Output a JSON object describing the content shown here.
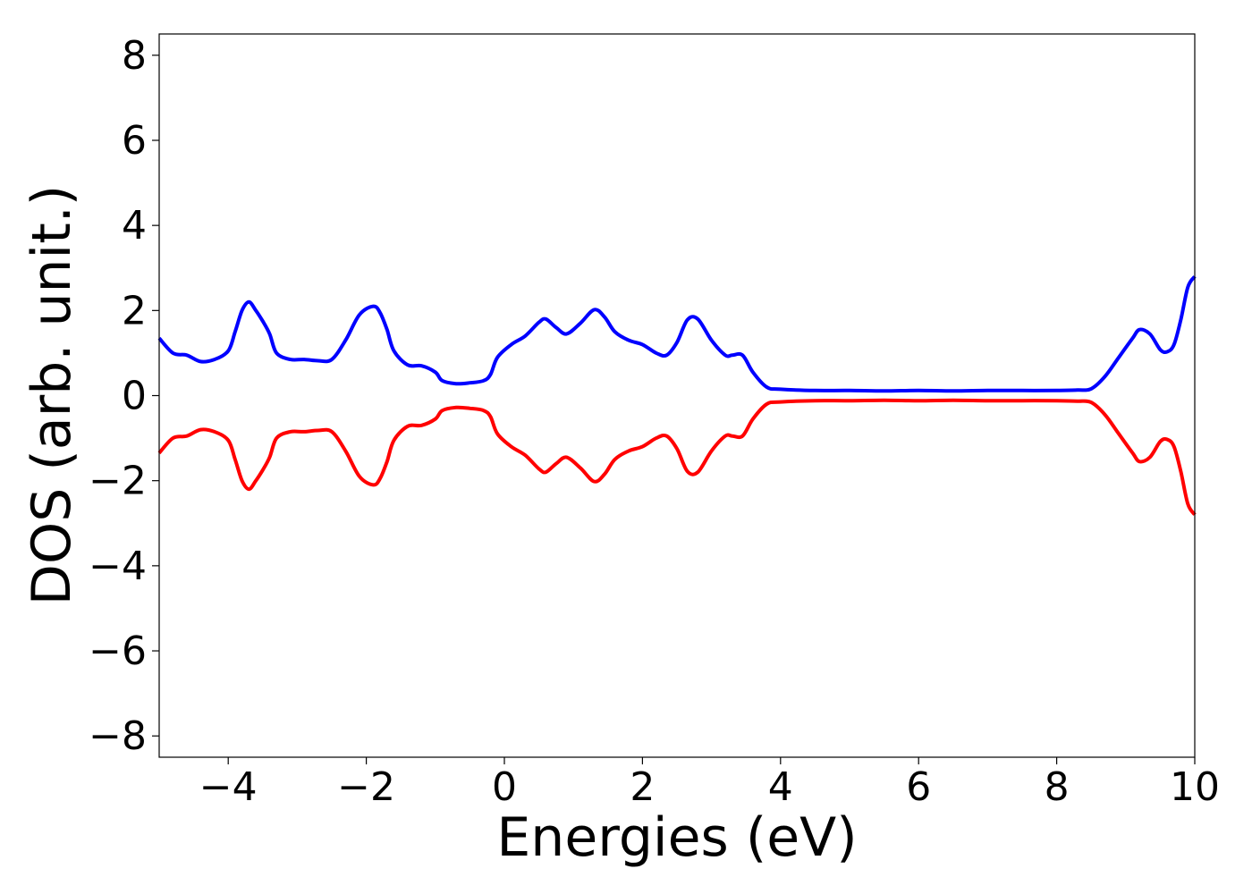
{
  "chart_data": {
    "type": "line",
    "title": "",
    "xlabel": "Energies (eV)",
    "ylabel": "DOS (arb. unit.)",
    "xlim": [
      -5,
      10
    ],
    "ylim": [
      -8.5,
      8.5
    ],
    "xticks": [
      -4,
      -2,
      0,
      2,
      4,
      6,
      8,
      10
    ],
    "yticks": [
      -8,
      -6,
      -4,
      -2,
      0,
      2,
      4,
      6,
      8
    ],
    "xtick_labels": [
      "−4",
      "−2",
      "0",
      "2",
      "4",
      "6",
      "8",
      "10"
    ],
    "ytick_labels": [
      "−8",
      "−6",
      "−4",
      "−2",
      "0",
      "2",
      "4",
      "6",
      "8"
    ],
    "grid": false,
    "legend": "none",
    "series": [
      {
        "color": "#0000ff",
        "x": [
          -5.0,
          -4.8,
          -4.6,
          -4.4,
          -4.2,
          -4.0,
          -3.9,
          -3.8,
          -3.7,
          -3.6,
          -3.5,
          -3.4,
          -3.3,
          -3.1,
          -2.9,
          -2.7,
          -2.5,
          -2.3,
          -2.1,
          -1.9,
          -1.8,
          -1.7,
          -1.6,
          -1.4,
          -1.2,
          -1.0,
          -0.9,
          -0.7,
          -0.5,
          -0.3,
          -0.2,
          -0.1,
          0.1,
          0.3,
          0.5,
          0.6,
          0.75,
          0.9,
          1.1,
          1.3,
          1.45,
          1.6,
          1.8,
          2.0,
          2.2,
          2.35,
          2.5,
          2.65,
          2.8,
          3.0,
          3.2,
          3.3,
          3.45,
          3.6,
          3.8,
          4.0,
          4.5,
          5.0,
          5.5,
          6.0,
          6.5,
          7.0,
          7.5,
          8.0,
          8.3,
          8.5,
          8.7,
          8.9,
          9.1,
          9.2,
          9.35,
          9.5,
          9.6,
          9.7,
          9.8,
          9.9,
          10.0
        ],
        "y": [
          1.35,
          1.0,
          0.95,
          0.8,
          0.85,
          1.05,
          1.5,
          2.0,
          2.2,
          2.0,
          1.75,
          1.45,
          1.0,
          0.85,
          0.85,
          0.82,
          0.85,
          1.3,
          1.9,
          2.1,
          1.95,
          1.55,
          1.05,
          0.72,
          0.7,
          0.55,
          0.35,
          0.28,
          0.3,
          0.35,
          0.5,
          0.9,
          1.2,
          1.4,
          1.72,
          1.8,
          1.6,
          1.45,
          1.7,
          2.02,
          1.85,
          1.5,
          1.3,
          1.2,
          1.0,
          0.95,
          1.25,
          1.78,
          1.8,
          1.3,
          0.95,
          0.95,
          0.95,
          0.55,
          0.2,
          0.15,
          0.12,
          0.12,
          0.11,
          0.12,
          0.11,
          0.12,
          0.12,
          0.12,
          0.13,
          0.16,
          0.45,
          0.9,
          1.35,
          1.55,
          1.45,
          1.08,
          1.03,
          1.2,
          1.8,
          2.55,
          2.8
        ]
      },
      {
        "color": "#ff0000",
        "x": [
          -5.0,
          -4.8,
          -4.6,
          -4.4,
          -4.2,
          -4.0,
          -3.9,
          -3.8,
          -3.7,
          -3.6,
          -3.5,
          -3.4,
          -3.3,
          -3.1,
          -2.9,
          -2.7,
          -2.5,
          -2.3,
          -2.1,
          -1.9,
          -1.8,
          -1.7,
          -1.6,
          -1.4,
          -1.2,
          -1.0,
          -0.9,
          -0.7,
          -0.5,
          -0.3,
          -0.2,
          -0.1,
          0.1,
          0.3,
          0.5,
          0.6,
          0.75,
          0.9,
          1.1,
          1.3,
          1.45,
          1.6,
          1.8,
          2.0,
          2.2,
          2.35,
          2.5,
          2.65,
          2.8,
          3.0,
          3.2,
          3.3,
          3.45,
          3.6,
          3.8,
          4.0,
          4.5,
          5.0,
          5.5,
          6.0,
          6.5,
          7.0,
          7.5,
          8.0,
          8.3,
          8.5,
          8.7,
          8.9,
          9.1,
          9.2,
          9.35,
          9.5,
          9.6,
          9.7,
          9.8,
          9.9,
          10.0
        ],
        "y": [
          -1.35,
          -1.0,
          -0.95,
          -0.8,
          -0.85,
          -1.05,
          -1.5,
          -2.0,
          -2.2,
          -2.0,
          -1.75,
          -1.45,
          -1.0,
          -0.85,
          -0.85,
          -0.82,
          -0.85,
          -1.3,
          -1.9,
          -2.1,
          -1.95,
          -1.55,
          -1.05,
          -0.72,
          -0.7,
          -0.55,
          -0.35,
          -0.28,
          -0.3,
          -0.35,
          -0.5,
          -0.9,
          -1.2,
          -1.4,
          -1.72,
          -1.8,
          -1.6,
          -1.45,
          -1.7,
          -2.02,
          -1.85,
          -1.5,
          -1.3,
          -1.2,
          -1.0,
          -0.95,
          -1.25,
          -1.78,
          -1.8,
          -1.3,
          -0.95,
          -0.95,
          -0.95,
          -0.55,
          -0.2,
          -0.15,
          -0.12,
          -0.12,
          -0.11,
          -0.12,
          -0.11,
          -0.12,
          -0.12,
          -0.12,
          -0.13,
          -0.16,
          -0.45,
          -0.9,
          -1.35,
          -1.55,
          -1.45,
          -1.08,
          -1.03,
          -1.2,
          -1.8,
          -2.55,
          -2.8
        ]
      }
    ]
  }
}
